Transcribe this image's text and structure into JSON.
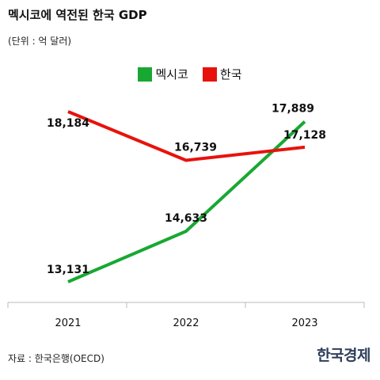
{
  "header": {
    "title": "멕시코에 역전된 한국 GDP",
    "unit": "(단위 : 억 달러)"
  },
  "legend": [
    {
      "name": "멕시코",
      "color": "#18a832"
    },
    {
      "name": "한국",
      "color": "#e8120c"
    }
  ],
  "chart_data": {
    "type": "line",
    "x": [
      "2021",
      "2022",
      "2023"
    ],
    "series": [
      {
        "name": "멕시코",
        "color": "#18a832",
        "values": [
          13131,
          14633,
          17889
        ],
        "labels": [
          "13,131",
          "14,633",
          "17,889"
        ]
      },
      {
        "name": "한국",
        "color": "#e8120c",
        "values": [
          18184,
          16739,
          17128
        ],
        "labels": [
          "18,184",
          "16,739",
          "17,128"
        ]
      }
    ],
    "title": "멕시코에 역전된 한국 GDP",
    "ylabel": "(단위 : 억 달러)",
    "grid": false,
    "legend_position": "top-center"
  },
  "footer": {
    "source": "자료 : 한국은행(OECD)",
    "logo": "한국경제"
  }
}
